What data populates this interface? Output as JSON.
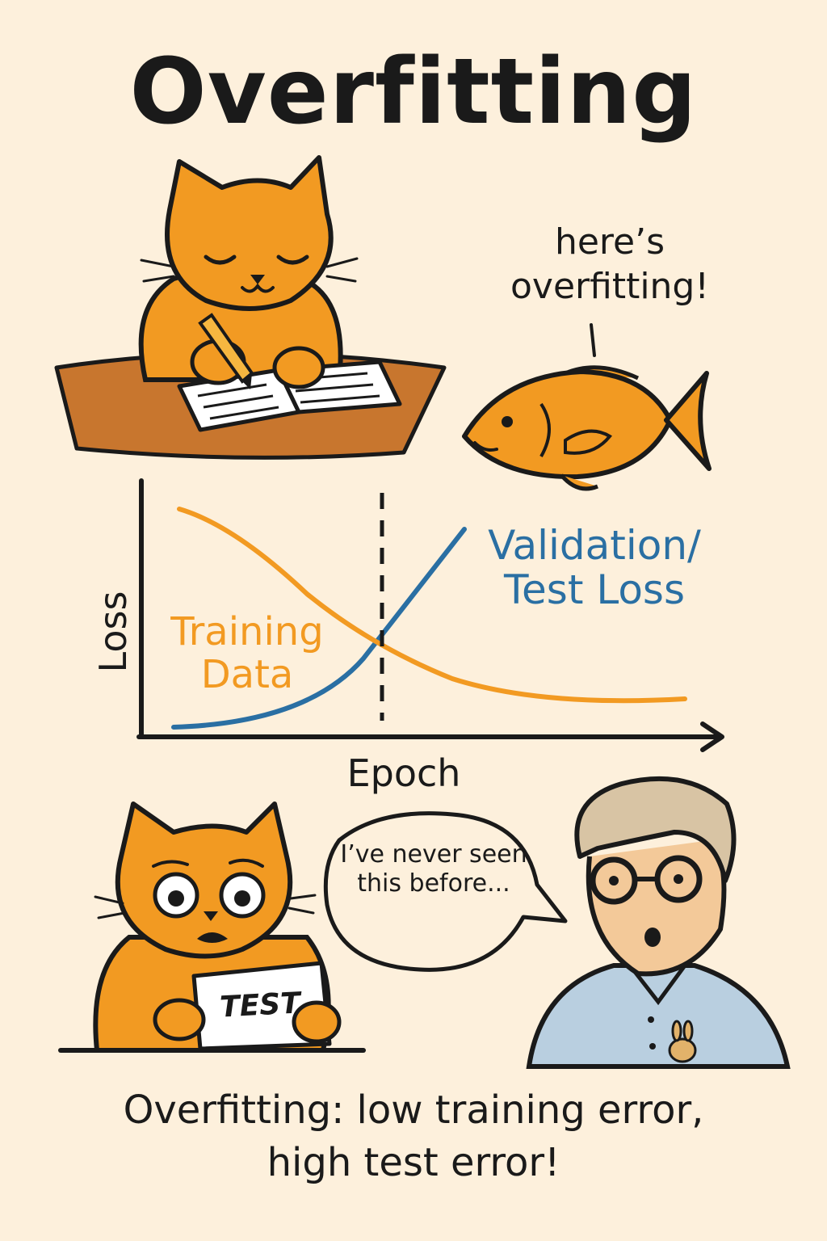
{
  "title": "Overfitting",
  "fish_speech": "here’s overfitting!",
  "chart": {
    "x_label": "Epoch",
    "y_label": "Loss",
    "training_label": "Training Data",
    "validation_label": "Validation/ Test Loss"
  },
  "chart_data": {
    "type": "line",
    "xlabel": "Epoch",
    "ylabel": "Loss",
    "series": [
      {
        "name": "Training Data",
        "color": "#f29a22",
        "trend": "decreasing"
      },
      {
        "name": "Validation/ Test Loss",
        "color": "#2a6fa3",
        "trend": "increasing"
      }
    ],
    "marker": "dashed vertical line at curve intersection"
  },
  "bubble_text": "I’ve never seen this before...",
  "test_card": "TEST",
  "caption_line1": "Overfitting: low training error,",
  "caption_line2": "high test error!",
  "colors": {
    "background": "#fdf0dc",
    "cat_orange": "#f29a22",
    "train_line": "#f29a22",
    "val_line": "#2a6fa3",
    "desk": "#c8762e",
    "shirt": "#b9cfe0"
  },
  "icons": [
    "cat-icon",
    "fish-icon",
    "book-icon",
    "pencil-icon",
    "teacher-icon",
    "bunny-icon"
  ]
}
